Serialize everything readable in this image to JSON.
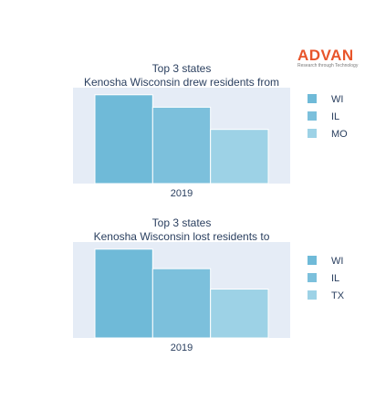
{
  "brand": {
    "name": "ADVAN",
    "tagline": "Research through Technology"
  },
  "colors": {
    "plot_bg": "#e5ecf6",
    "series": [
      "#6fbad8",
      "#7cc0dc",
      "#9dd2e6"
    ]
  },
  "chart_data": [
    {
      "type": "bar",
      "title": "Top 3 states",
      "subtitle": "Kenosha Wisconsin drew residents from",
      "categories": [
        "2019"
      ],
      "series": [
        {
          "name": "WI",
          "values": [
            100
          ]
        },
        {
          "name": "IL",
          "values": [
            86
          ]
        },
        {
          "name": "MO",
          "values": [
            61
          ]
        }
      ],
      "show_y_axis": false,
      "legend_position": "right"
    },
    {
      "type": "bar",
      "title": "Top 3 states",
      "subtitle": "Kenosha Wisconsin lost residents to",
      "categories": [
        "2019"
      ],
      "series": [
        {
          "name": "WI",
          "values": [
            100
          ]
        },
        {
          "name": "IL",
          "values": [
            78
          ]
        },
        {
          "name": "TX",
          "values": [
            55
          ]
        }
      ],
      "show_y_axis": false,
      "legend_position": "right"
    }
  ]
}
